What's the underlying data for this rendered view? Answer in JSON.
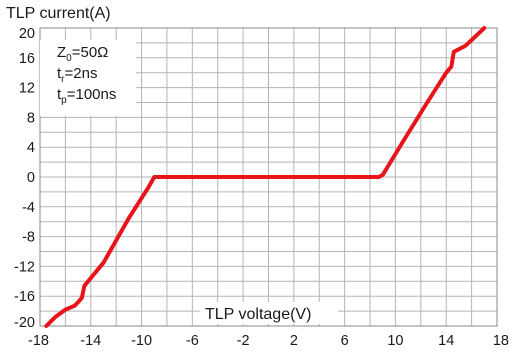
{
  "chart_data": {
    "type": "line",
    "ylabel": "TLP current(A)",
    "xlabel": "TLP voltage(V)",
    "xlim": [
      -18,
      18
    ],
    "ylim": [
      -20,
      20
    ],
    "xticks": [
      -18,
      -14,
      -10,
      -6,
      -2,
      2,
      6,
      10,
      14,
      18
    ],
    "yticks": [
      20,
      16,
      12,
      8,
      4,
      0,
      -4,
      -8,
      -12,
      -16,
      -20
    ],
    "grid": true,
    "parameters": [
      {
        "symbol": "Z",
        "subscript": "0",
        "value": "=50Ω"
      },
      {
        "symbol": "t",
        "subscript": "r",
        "value": "=2ns"
      },
      {
        "symbol": "t",
        "subscript": "p",
        "value": "=100ns"
      }
    ],
    "color": "#e8141b",
    "series": [
      {
        "x": [
          -17.5,
          -16.8,
          -16.0,
          -15.3,
          -15.0,
          -14.7,
          -14.5,
          -13.0,
          -11.0,
          -9.5,
          -9.0,
          -8.7,
          8.3,
          8.7,
          9.0,
          10.5,
          12.5,
          14.0,
          14.4,
          14.6,
          15.5,
          16.5,
          17.0
        ],
        "y": [
          -20,
          -18.8,
          -17.8,
          -17.3,
          -16.8,
          -16.2,
          -14.6,
          -11.5,
          -5.5,
          -1.5,
          0,
          0,
          0,
          0,
          0.3,
          4.5,
          10.0,
          14.0,
          14.8,
          16.8,
          17.6,
          19.2,
          20
        ]
      }
    ]
  }
}
